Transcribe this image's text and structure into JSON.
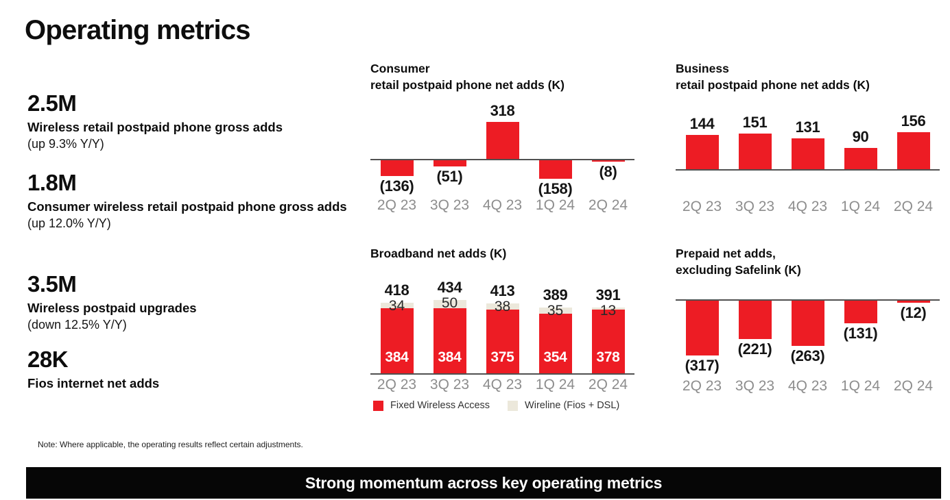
{
  "slide": {
    "title": "Operating metrics",
    "note": "Note:  Where applicable, the operating results reflect certain adjustments.",
    "footer": "Strong momentum across key operating metrics"
  },
  "colors": {
    "brand_red": "#ED1C24",
    "wireline_beige": "#ECE8DB",
    "axis_line_gray": "#505050",
    "category_label_gray": "#8D8D8D",
    "footer_bg": "#060606",
    "footer_text": "#FFFFFF"
  },
  "metrics": [
    {
      "value": "2.5M",
      "label": "Wireless retail postpaid phone gross adds",
      "sub": "(up 9.3% Y/Y)"
    },
    {
      "value": "1.8M",
      "label": "Consumer wireless retail postpaid phone gross adds",
      "sub": "(up 12.0% Y/Y)"
    },
    {
      "value": "3.5M",
      "label": "Wireless postpaid upgrades",
      "sub": "(down 12.5% Y/Y)"
    },
    {
      "value": "28K",
      "label": "Fios internet net adds",
      "sub": ""
    }
  ],
  "chart_data": [
    {
      "id": "consumer-retail-postpaid-phone-net-adds",
      "type": "bar",
      "title": "Consumer retail postpaid phone net adds (K)",
      "title_lines": [
        "Consumer",
        "retail postpaid phone net adds (K)"
      ],
      "categories": [
        "2Q 23",
        "3Q 23",
        "4Q 23",
        "1Q 24",
        "2Q 24"
      ],
      "values": [
        -136,
        -51,
        318,
        -158,
        -8
      ],
      "labels": [
        "(136)",
        "(51)",
        "318",
        "(158)",
        "(8)"
      ],
      "ylim": [
        -200,
        350
      ],
      "grid": false,
      "legend_position": "none"
    },
    {
      "id": "business-retail-postpaid-phone-net-adds",
      "type": "bar",
      "title": "Business retail postpaid phone net adds (K)",
      "title_lines": [
        "Business",
        "retail postpaid phone net adds (K)"
      ],
      "categories": [
        "2Q 23",
        "3Q 23",
        "4Q 23",
        "1Q 24",
        "2Q 24"
      ],
      "values": [
        144,
        151,
        131,
        90,
        156
      ],
      "labels": [
        "144",
        "151",
        "131",
        "90",
        "156"
      ],
      "ylim": [
        0,
        170
      ],
      "grid": false,
      "legend_position": "none"
    },
    {
      "id": "broadband-net-adds",
      "type": "stacked_bar",
      "title": "Broadband net adds (K)",
      "title_lines": [
        "Broadband net adds (K)"
      ],
      "categories": [
        "2Q 23",
        "3Q 23",
        "4Q 23",
        "1Q 24",
        "2Q 24"
      ],
      "series": [
        {
          "name": "Fixed Wireless Access",
          "color_key": "brand_red",
          "values": [
            384,
            384,
            375,
            354,
            378
          ]
        },
        {
          "name": "Wireline (Fios + DSL)",
          "color_key": "wireline_beige",
          "values": [
            34,
            50,
            38,
            35,
            13
          ]
        }
      ],
      "totals": [
        418,
        434,
        413,
        389,
        391
      ],
      "total_labels": [
        "418",
        "434",
        "413",
        "389",
        "391"
      ],
      "ylim": [
        0,
        450
      ],
      "grid": false,
      "legend_position": "bottom"
    },
    {
      "id": "prepaid-net-adds-excluding-safelink",
      "type": "bar",
      "title": "Prepaid net adds, excluding Safelink (K)",
      "title_lines": [
        "Prepaid net adds,",
        "excluding Safelink (K)"
      ],
      "categories": [
        "2Q 23",
        "3Q 23",
        "4Q 23",
        "1Q 24",
        "2Q 24"
      ],
      "values": [
        -317,
        -221,
        -263,
        -131,
        -12
      ],
      "labels": [
        "(317)",
        "(221)",
        "(263)",
        "(131)",
        "(12)"
      ],
      "ylim": [
        -350,
        0
      ],
      "grid": false,
      "legend_position": "none"
    }
  ]
}
